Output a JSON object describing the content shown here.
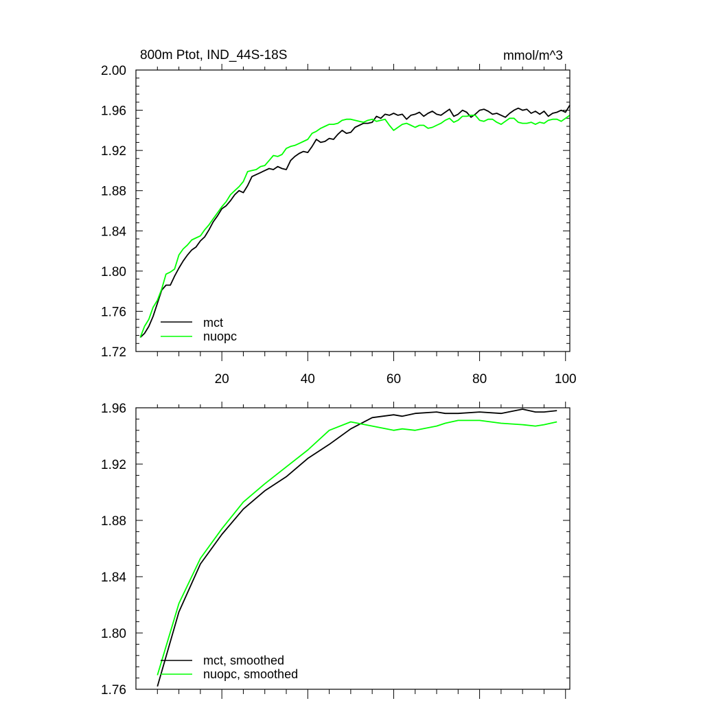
{
  "chart_data": [
    {
      "type": "line",
      "title": "800m Ptot, IND_44S-18S",
      "units": "mmol/m^3",
      "xlim": [
        0,
        101
      ],
      "ylim": [
        1.72,
        2.0
      ],
      "xticks": [
        20,
        40,
        60,
        80,
        100
      ],
      "xtick_labels": [
        "20",
        "40",
        "60",
        "80",
        "100"
      ],
      "yticks": [
        1.72,
        1.76,
        1.8,
        1.84,
        1.88,
        1.92,
        1.96,
        2.0
      ],
      "ytick_labels": [
        "1.72",
        "1.76",
        "1.80",
        "1.84",
        "1.88",
        "1.92",
        "1.96",
        "2.00"
      ],
      "legend_position": "bottom-left",
      "series": [
        {
          "name": "mct",
          "color": "#000000",
          "x": [
            1,
            2,
            3,
            4,
            5,
            6,
            7,
            8,
            9,
            10,
            11,
            12,
            13,
            14,
            15,
            16,
            17,
            18,
            19,
            20,
            21,
            22,
            23,
            24,
            25,
            26,
            27,
            28,
            29,
            30,
            31,
            32,
            33,
            34,
            35,
            36,
            37,
            38,
            39,
            40,
            41,
            42,
            43,
            44,
            45,
            46,
            47,
            48,
            49,
            50,
            51,
            52,
            53,
            54,
            55,
            56,
            57,
            58,
            59,
            60,
            61,
            62,
            63,
            64,
            65,
            66,
            67,
            68,
            69,
            70,
            71,
            72,
            73,
            74,
            75,
            76,
            77,
            78,
            79,
            80,
            81,
            82,
            83,
            84,
            85,
            86,
            87,
            88,
            89,
            90,
            91,
            92,
            93,
            94,
            95,
            96,
            97,
            98,
            99,
            100,
            101
          ],
          "values": [
            1.734,
            1.738,
            1.745,
            1.755,
            1.768,
            1.781,
            1.786,
            1.786,
            1.795,
            1.803,
            1.81,
            1.816,
            1.821,
            1.824,
            1.83,
            1.834,
            1.841,
            1.849,
            1.855,
            1.862,
            1.865,
            1.87,
            1.876,
            1.88,
            1.878,
            1.885,
            1.894,
            1.896,
            1.898,
            1.9,
            1.902,
            1.901,
            1.904,
            1.902,
            1.901,
            1.91,
            1.914,
            1.917,
            1.919,
            1.918,
            1.924,
            1.931,
            1.928,
            1.929,
            1.932,
            1.931,
            1.936,
            1.94,
            1.937,
            1.938,
            1.943,
            1.945,
            1.947,
            1.947,
            1.948,
            1.954,
            1.952,
            1.956,
            1.955,
            1.957,
            1.955,
            1.956,
            1.951,
            1.955,
            1.956,
            1.958,
            1.954,
            1.957,
            1.959,
            1.956,
            1.955,
            1.958,
            1.961,
            1.954,
            1.956,
            1.96,
            1.958,
            1.953,
            1.956,
            1.96,
            1.961,
            1.959,
            1.956,
            1.957,
            1.955,
            1.953,
            1.957,
            1.96,
            1.962,
            1.96,
            1.961,
            1.957,
            1.959,
            1.956,
            1.959,
            1.954,
            1.957,
            1.958,
            1.96,
            1.958,
            1.965
          ]
        },
        {
          "name": "nuopc",
          "color": "#00ff00",
          "x": [
            1,
            2,
            3,
            4,
            5,
            6,
            7,
            8,
            9,
            10,
            11,
            12,
            13,
            14,
            15,
            16,
            17,
            18,
            19,
            20,
            21,
            22,
            23,
            24,
            25,
            26,
            27,
            28,
            29,
            30,
            31,
            32,
            33,
            34,
            35,
            36,
            37,
            38,
            39,
            40,
            41,
            42,
            43,
            44,
            45,
            46,
            47,
            48,
            49,
            50,
            51,
            52,
            53,
            54,
            55,
            56,
            57,
            58,
            59,
            60,
            61,
            62,
            63,
            64,
            65,
            66,
            67,
            68,
            69,
            70,
            71,
            72,
            73,
            74,
            75,
            76,
            77,
            78,
            79,
            80,
            81,
            82,
            83,
            84,
            85,
            86,
            87,
            88,
            89,
            90,
            91,
            92,
            93,
            94,
            95,
            96,
            97,
            98,
            99,
            100,
            101
          ],
          "values": [
            1.734,
            1.745,
            1.752,
            1.764,
            1.771,
            1.782,
            1.797,
            1.799,
            1.802,
            1.816,
            1.822,
            1.826,
            1.831,
            1.833,
            1.835,
            1.841,
            1.846,
            1.852,
            1.858,
            1.864,
            1.869,
            1.876,
            1.88,
            1.884,
            1.889,
            1.899,
            1.9,
            1.901,
            1.904,
            1.905,
            1.91,
            1.915,
            1.914,
            1.916,
            1.922,
            1.924,
            1.925,
            1.927,
            1.929,
            1.931,
            1.937,
            1.939,
            1.942,
            1.944,
            1.946,
            1.946,
            1.947,
            1.95,
            1.951,
            1.951,
            1.95,
            1.949,
            1.948,
            1.95,
            1.951,
            1.949,
            1.95,
            1.951,
            1.945,
            1.94,
            1.943,
            1.946,
            1.947,
            1.945,
            1.943,
            1.945,
            1.945,
            1.942,
            1.943,
            1.945,
            1.947,
            1.95,
            1.952,
            1.948,
            1.95,
            1.954,
            1.954,
            1.955,
            1.955,
            1.95,
            1.949,
            1.951,
            1.951,
            1.948,
            1.946,
            1.949,
            1.952,
            1.952,
            1.948,
            1.947,
            1.947,
            1.948,
            1.946,
            1.948,
            1.947,
            1.95,
            1.951,
            1.951,
            1.949,
            1.952,
            1.955
          ]
        }
      ]
    },
    {
      "type": "line",
      "title": "",
      "xlim": [
        0,
        101
      ],
      "ylim": [
        1.76,
        1.96
      ],
      "xticks": [
        20,
        40,
        60,
        80,
        100
      ],
      "xtick_labels": [],
      "yticks": [
        1.76,
        1.8,
        1.84,
        1.88,
        1.92,
        1.96
      ],
      "ytick_labels": [
        "1.76",
        "1.80",
        "1.84",
        "1.88",
        "1.92",
        "1.96"
      ],
      "legend_position": "bottom-left",
      "series": [
        {
          "name": "mct, smoothed",
          "color": "#000000",
          "x": [
            5,
            10,
            15,
            20,
            25,
            30,
            35,
            40,
            45,
            50,
            55,
            60,
            62,
            65,
            70,
            72,
            75,
            80,
            85,
            90,
            93,
            95,
            98
          ],
          "values": [
            1.762,
            1.815,
            1.849,
            1.87,
            1.888,
            1.901,
            1.911,
            1.924,
            1.934,
            1.945,
            1.953,
            1.955,
            1.954,
            1.956,
            1.957,
            1.956,
            1.956,
            1.957,
            1.956,
            1.959,
            1.957,
            1.957,
            1.958
          ]
        },
        {
          "name": "nuopc, smoothed",
          "color": "#00ff00",
          "x": [
            5,
            10,
            15,
            20,
            25,
            30,
            35,
            40,
            45,
            50,
            55,
            60,
            62,
            65,
            70,
            72,
            75,
            80,
            85,
            90,
            93,
            95,
            98
          ],
          "values": [
            1.77,
            1.821,
            1.853,
            1.874,
            1.893,
            1.906,
            1.918,
            1.93,
            1.944,
            1.95,
            1.947,
            1.944,
            1.945,
            1.944,
            1.947,
            1.949,
            1.951,
            1.951,
            1.949,
            1.948,
            1.947,
            1.948,
            1.95
          ]
        }
      ]
    }
  ]
}
